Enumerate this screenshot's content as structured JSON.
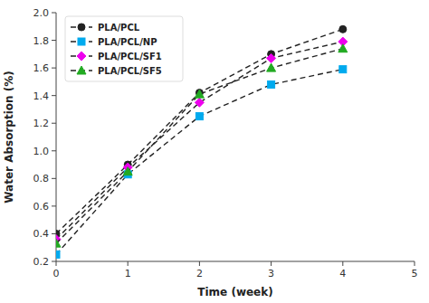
{
  "chart_data": {
    "type": "line",
    "x_label": "Time (week)",
    "y_label": "Water Absorption (%)",
    "x": [
      0,
      1,
      2,
      3,
      4
    ],
    "color": "#222222",
    "line_style": "dashed",
    "series": [
      {
        "name": "PLA/PCL",
        "color": "#222222",
        "marker": "circle",
        "values": [
          0.4,
          0.9,
          1.42,
          1.7,
          1.88
        ]
      },
      {
        "name": "PLA/PCL/NP",
        "color": "#00aaee",
        "marker": "square",
        "values": [
          0.25,
          0.83,
          1.25,
          1.48,
          1.59
        ]
      },
      {
        "name": "PLA/PCL/SF1",
        "color": "#ee00ee",
        "marker": "diamond",
        "values": [
          0.36,
          0.88,
          1.35,
          1.67,
          1.79
        ]
      },
      {
        "name": "PLA/PCL/SF5",
        "color": "#22aa22",
        "marker": "triangle",
        "values": [
          0.33,
          0.85,
          1.41,
          1.6,
          1.74
        ]
      }
    ],
    "xlim": [
      0,
      5
    ],
    "ylim": [
      0.2,
      2.0
    ],
    "xticks": [
      0,
      1,
      2,
      3,
      4,
      5
    ],
    "yticks": [
      0.2,
      0.4,
      0.6,
      0.8,
      {
        "value": 1.0,
        "label": "1.0"
      },
      1.2,
      1.4,
      1.6,
      1.8,
      {
        "value": 2.0,
        "label": "2.0"
      }
    ],
    "legend": "upper left",
    "grid": false
  }
}
